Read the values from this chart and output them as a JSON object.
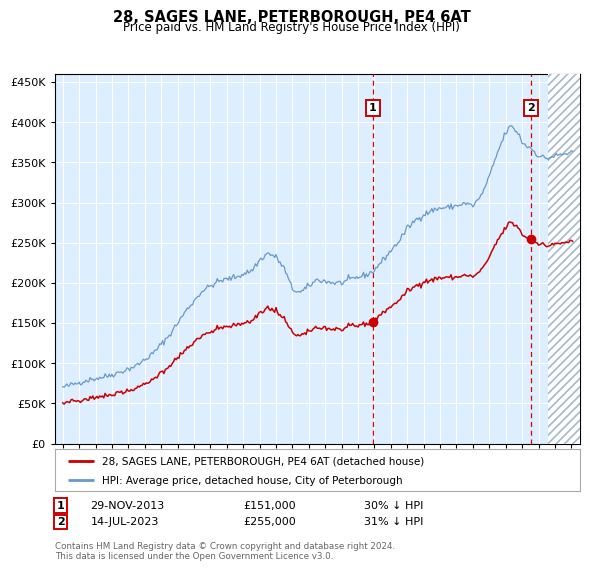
{
  "title": "28, SAGES LANE, PETERBOROUGH, PE4 6AT",
  "subtitle": "Price paid vs. HM Land Registry's House Price Index (HPI)",
  "legend_label_red": "28, SAGES LANE, PETERBOROUGH, PE4 6AT (detached house)",
  "legend_label_blue": "HPI: Average price, detached house, City of Peterborough",
  "footer": "Contains HM Land Registry data © Crown copyright and database right 2024.\nThis data is licensed under the Open Government Licence v3.0.",
  "annotation1_date": "29-NOV-2013",
  "annotation1_price": "£151,000",
  "annotation1_hpi": "30% ↓ HPI",
  "annotation2_date": "14-JUL-2023",
  "annotation2_price": "£255,000",
  "annotation2_hpi": "31% ↓ HPI",
  "sale1_x": 2013.91,
  "sale1_y": 151000,
  "sale2_x": 2023.54,
  "sale2_y": 255000,
  "ylim": [
    0,
    460000
  ],
  "xlim_start": 1994.5,
  "xlim_end": 2026.5,
  "plot_bg_color": "#ddeeff",
  "grid_color": "#ffffff",
  "red_line_color": "#cc0000",
  "blue_line_color": "#6699cc",
  "dashed_line_color": "#dd0000",
  "marker_color": "#cc0000",
  "hatch_start": 2024.58
}
